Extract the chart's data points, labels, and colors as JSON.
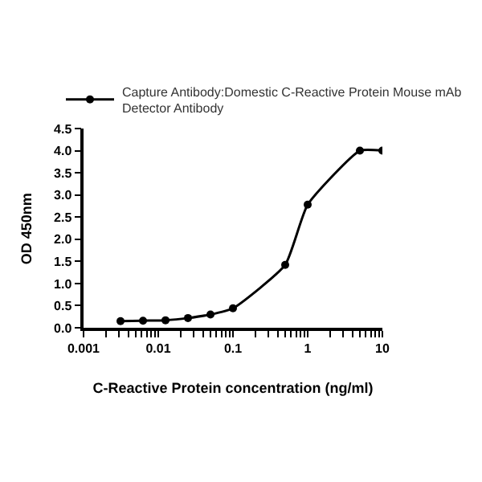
{
  "chart_data": {
    "type": "line",
    "xlabel": "C-Reactive Protein concentration (ng/ml)",
    "ylabel": "OD 450nm",
    "x": [
      0.003125,
      0.00625,
      0.0125,
      0.025,
      0.05,
      0.1,
      0.5,
      1,
      5,
      10
    ],
    "series": [
      {
        "name": "Capture Antibody:Domestic C-Reactive Protein Mouse mAb Detector Antibody",
        "color": "#000000",
        "values": [
          0.15,
          0.16,
          0.17,
          0.22,
          0.3,
          0.44,
          1.42,
          2.78,
          4.0,
          4.0
        ]
      }
    ],
    "log": "x",
    "xlim": [
      0.001,
      10
    ],
    "xticks": [
      0.001,
      {
        "value": 0.002,
        "label": null
      },
      {
        "value": 0.003,
        "label": null
      },
      {
        "value": 0.004,
        "label": null
      },
      {
        "value": 0.005,
        "label": null
      },
      {
        "value": 0.006,
        "label": null
      },
      {
        "value": 0.007,
        "label": null
      },
      {
        "value": 0.008,
        "label": null
      },
      {
        "value": 0.009,
        "label": null
      },
      0.01,
      {
        "value": 0.02,
        "label": null
      },
      {
        "value": 0.03,
        "label": null
      },
      {
        "value": 0.04,
        "label": null
      },
      {
        "value": 0.05,
        "label": null
      },
      {
        "value": 0.06,
        "label": null
      },
      {
        "value": 0.07,
        "label": null
      },
      {
        "value": 0.08,
        "label": null
      },
      {
        "value": 0.09,
        "label": null
      },
      0.1,
      {
        "value": 0.2,
        "label": null
      },
      {
        "value": 0.3,
        "label": null
      },
      {
        "value": 0.4,
        "label": null
      },
      {
        "value": 0.5,
        "label": null
      },
      {
        "value": 0.6,
        "label": null
      },
      {
        "value": 0.7,
        "label": null
      },
      {
        "value": 0.8,
        "label": null
      },
      {
        "value": 0.9,
        "label": null
      },
      1,
      {
        "value": 2,
        "label": null
      },
      {
        "value": 3,
        "label": null
      },
      {
        "value": 4,
        "label": null
      },
      {
        "value": 5,
        "label": null
      },
      {
        "value": 6,
        "label": null
      },
      {
        "value": 7,
        "label": null
      },
      {
        "value": 8,
        "label": null
      },
      {
        "value": 9,
        "label": null
      },
      10
    ],
    "ylim": [
      0,
      4.5
    ],
    "yticks": [
      {
        "value": 0,
        "label": "0.0"
      },
      {
        "value": 0.5,
        "label": "0.5"
      },
      {
        "value": 1,
        "label": "1.0"
      },
      {
        "value": 1.5,
        "label": "1.5"
      },
      {
        "value": 2,
        "label": "2.0"
      },
      {
        "value": 2.5,
        "label": "2.5"
      },
      {
        "value": 3,
        "label": "3.0"
      },
      {
        "value": 3.5,
        "label": "3.5"
      },
      {
        "value": 4,
        "label": "4.0"
      },
      {
        "value": 4.5,
        "label": "4.5"
      }
    ],
    "legend": "top",
    "marker": "circle",
    "line_style": "solid"
  }
}
